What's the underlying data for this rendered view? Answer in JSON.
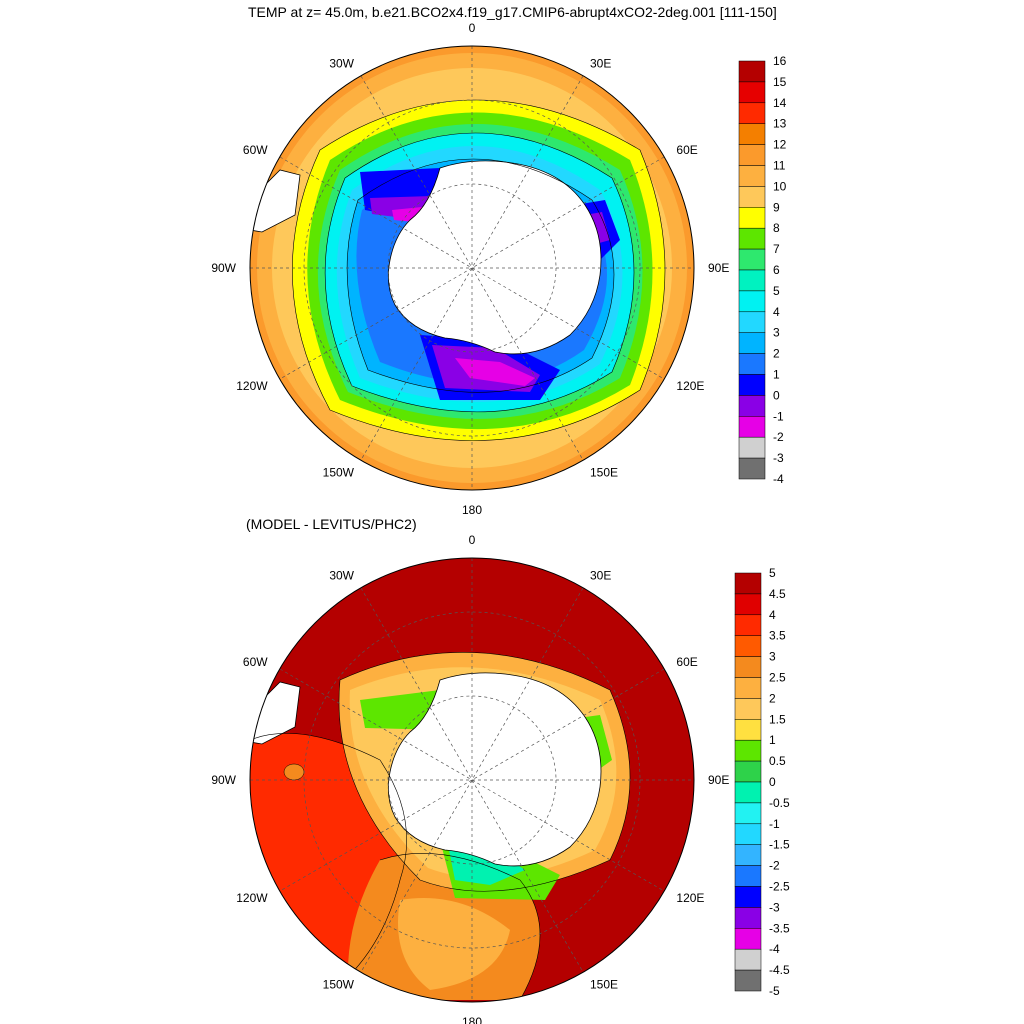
{
  "titles": {
    "top": "TEMP at z=  45.0m, b.e21.BCO2x4.f19_g17.CMIP6-abrupt4xCO2-2deg.001 [111-150]",
    "bottom": "(MODEL - LEVITUS/PHC2)"
  },
  "projection": "south-polar-stereographic",
  "longitude_labels": [
    "0",
    "30E",
    "60E",
    "90E",
    "120E",
    "150E",
    "180",
    "150W",
    "120W",
    "90W",
    "60W",
    "30W"
  ],
  "panels": [
    {
      "id": "model-temp",
      "variable": "TEMP",
      "colorbar": {
        "ticks": [
          "16",
          "15",
          "14",
          "13",
          "12",
          "11",
          "10",
          "9",
          "8",
          "7",
          "6",
          "5",
          "4",
          "3",
          "2",
          "1",
          "0",
          "-1",
          "-2",
          "-3",
          "-4"
        ],
        "colors": [
          "#b40000",
          "#e60000",
          "#ff2a00",
          "#f47f00",
          "#fb9a2c",
          "#fdb040",
          "#fec85a",
          "#ffff00",
          "#5de600",
          "#2ee86e",
          "#00f2c0",
          "#00f2f2",
          "#22d8ff",
          "#00b4ff",
          "#1a78ff",
          "#0000ff",
          "#8a00e6",
          "#e600e6",
          "#d0d0d0",
          "#707070"
        ]
      }
    },
    {
      "id": "model-minus-levitus",
      "variable": "TEMP difference",
      "colorbar": {
        "ticks": [
          "5",
          "4.5",
          "4",
          "3.5",
          "3",
          "2.5",
          "2",
          "1.5",
          "1",
          "0.5",
          "0",
          "-0.5",
          "-1",
          "-1.5",
          "-2",
          "-2.5",
          "-3",
          "-3.5",
          "-4",
          "-4.5",
          "-5"
        ],
        "colors": [
          "#b40000",
          "#e00000",
          "#ff2a00",
          "#ff5a00",
          "#f48a1e",
          "#fdb040",
          "#fec85a",
          "#ffe040",
          "#5de600",
          "#2ed24a",
          "#00f2b0",
          "#22f2f2",
          "#22d8ff",
          "#33b4ff",
          "#1a78ff",
          "#0000ff",
          "#8a00e6",
          "#e600e6",
          "#d0d0d0",
          "#707070"
        ]
      }
    }
  ]
}
